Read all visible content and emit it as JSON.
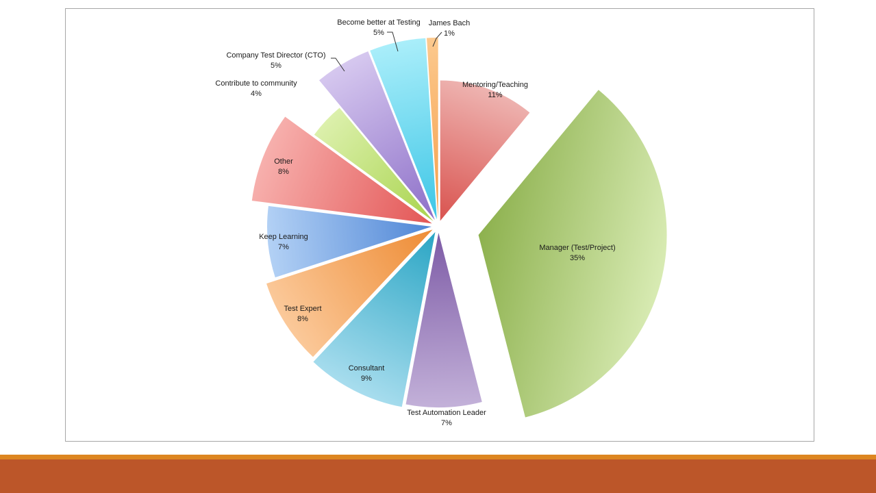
{
  "chart_data": {
    "type": "pie",
    "exploded": true,
    "slices": [
      {
        "label": "Mentoring/Teaching",
        "value": 11,
        "pct_text": "11%",
        "color": "#d9534f",
        "light": "#eeb4b1"
      },
      {
        "label": "Manager (Test/Project)",
        "value": 35,
        "pct_text": "35%",
        "color": "#8db14e",
        "light": "#d8ebb3"
      },
      {
        "label": "Test Automation Leader",
        "value": 7,
        "pct_text": "7%",
        "color": "#7d5ba6",
        "light": "#c3b1d9"
      },
      {
        "label": "Consultant",
        "value": 9,
        "pct_text": "9%",
        "color": "#2aa5c4",
        "light": "#a8ddee"
      },
      {
        "label": "Test Expert",
        "value": 8,
        "pct_text": "8%",
        "color": "#ee8c35",
        "light": "#fbc99a"
      },
      {
        "label": "Keep Learning",
        "value": 7,
        "pct_text": "7%",
        "color": "#4f86d6",
        "light": "#b3d1f5"
      },
      {
        "label": "Other",
        "value": 8,
        "pct_text": "8%",
        "color": "#e35656",
        "light": "#f7b0ad"
      },
      {
        "label": "Contribute to community",
        "value": 4,
        "pct_text": "4%",
        "color": "#a9d44f",
        "light": "#dcf0ac"
      },
      {
        "label": "Company Test Director (CTO)",
        "value": 5,
        "pct_text": "5%",
        "color": "#8d6fc8",
        "light": "#d6c8ef"
      },
      {
        "label": "Become better at Testing",
        "value": 5,
        "pct_text": "5%",
        "color": "#3dc6e6",
        "light": "#aaeefa"
      },
      {
        "label": "James Bach",
        "value": 1,
        "pct_text": "1%",
        "color": "#f5a04b",
        "light": "#fcc98e"
      }
    ]
  },
  "colors": {
    "footer_band": "#bc5629",
    "footer_stripe": "#dd8620",
    "frame_border": "#a6a6a6"
  }
}
